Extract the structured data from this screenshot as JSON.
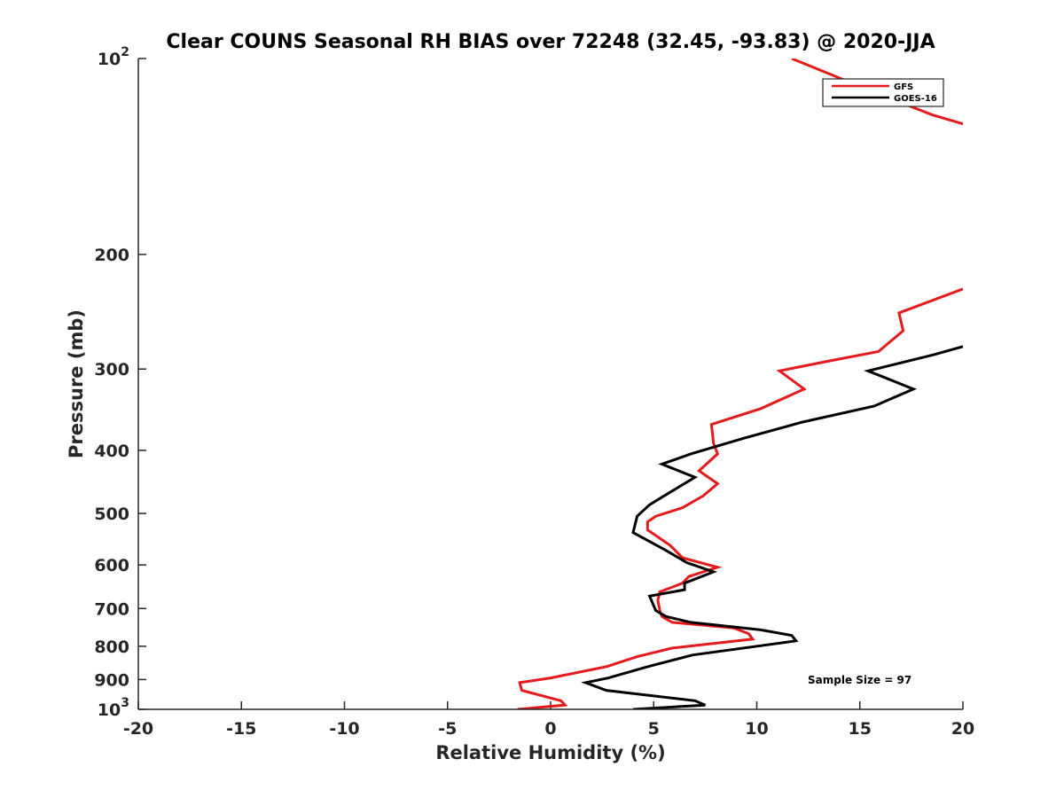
{
  "chart_data": {
    "type": "line",
    "title": "Clear COUNS Seasonal RH BIAS over 72248 (32.45, -93.83) @ 2020-JJA",
    "xlabel": "Relative Humidity (%)",
    "ylabel": "Pressure (mb)",
    "xlim": [
      -20,
      20
    ],
    "ylim": [
      100,
      1000
    ],
    "y_scale": "log",
    "y_reversed": true,
    "x_ticks": [
      "-20",
      "-15",
      "-10",
      "-5",
      "0",
      "5",
      "10",
      "15",
      "20"
    ],
    "y_tick_values": [
      100,
      200,
      300,
      400,
      500,
      600,
      700,
      800,
      900,
      1000
    ],
    "y_tick_labels": [
      "10^2",
      "200",
      "300",
      "400",
      "500",
      "600",
      "700",
      "800",
      "900",
      "10^3"
    ],
    "grid": false,
    "legend_position": "top-right",
    "annotation": "Sample Size = 97",
    "series": [
      {
        "name": "GFS",
        "color": "#e41a1c",
        "points": [
          {
            "x": -1.6,
            "y": 1000
          },
          {
            "x": 0.7,
            "y": 985
          },
          {
            "x": 0.5,
            "y": 970
          },
          {
            "x": -1.4,
            "y": 935
          },
          {
            "x": -1.5,
            "y": 910
          },
          {
            "x": 0.0,
            "y": 895
          },
          {
            "x": 2.7,
            "y": 860
          },
          {
            "x": 4.2,
            "y": 830
          },
          {
            "x": 5.9,
            "y": 805
          },
          {
            "x": 9.8,
            "y": 780
          },
          {
            "x": 9.6,
            "y": 765
          },
          {
            "x": 8.9,
            "y": 750
          },
          {
            "x": 5.9,
            "y": 735
          },
          {
            "x": 5.4,
            "y": 720
          },
          {
            "x": 5.3,
            "y": 705
          },
          {
            "x": 5.2,
            "y": 680
          },
          {
            "x": 5.3,
            "y": 660
          },
          {
            "x": 6.4,
            "y": 640
          },
          {
            "x": 6.7,
            "y": 625
          },
          {
            "x": 8.1,
            "y": 605
          },
          {
            "x": 6.4,
            "y": 585
          },
          {
            "x": 5.8,
            "y": 560
          },
          {
            "x": 4.7,
            "y": 530
          },
          {
            "x": 4.7,
            "y": 515
          },
          {
            "x": 5.1,
            "y": 505
          },
          {
            "x": 6.4,
            "y": 490
          },
          {
            "x": 7.4,
            "y": 470
          },
          {
            "x": 8.1,
            "y": 450
          },
          {
            "x": 7.2,
            "y": 430
          },
          {
            "x": 8.1,
            "y": 405
          },
          {
            "x": 7.9,
            "y": 390
          },
          {
            "x": 7.8,
            "y": 365
          },
          {
            "x": 10.2,
            "y": 345
          },
          {
            "x": 12.3,
            "y": 322
          },
          {
            "x": 11.1,
            "y": 302
          },
          {
            "x": 13.4,
            "y": 292
          },
          {
            "x": 15.9,
            "y": 282
          },
          {
            "x": 17.1,
            "y": 262
          },
          {
            "x": 16.9,
            "y": 246
          },
          {
            "x": 20.0,
            "y": 226
          }
        ],
        "points_upper": [
          {
            "x": 11.7,
            "y": 100
          },
          {
            "x": 15.8,
            "y": 113
          },
          {
            "x": 18.5,
            "y": 122
          },
          {
            "x": 20.0,
            "y": 126
          }
        ]
      },
      {
        "name": "GOES-16",
        "color": "#000000",
        "points": [
          {
            "x": 4.0,
            "y": 1000
          },
          {
            "x": 7.5,
            "y": 985
          },
          {
            "x": 7.0,
            "y": 970
          },
          {
            "x": 2.7,
            "y": 935
          },
          {
            "x": 1.7,
            "y": 910
          },
          {
            "x": 2.8,
            "y": 895
          },
          {
            "x": 4.7,
            "y": 860
          },
          {
            "x": 6.9,
            "y": 825
          },
          {
            "x": 11.9,
            "y": 785
          },
          {
            "x": 11.7,
            "y": 770
          },
          {
            "x": 10.2,
            "y": 755
          },
          {
            "x": 6.8,
            "y": 735
          },
          {
            "x": 5.6,
            "y": 720
          },
          {
            "x": 5.1,
            "y": 705
          },
          {
            "x": 4.8,
            "y": 670
          },
          {
            "x": 6.5,
            "y": 655
          },
          {
            "x": 6.5,
            "y": 640
          },
          {
            "x": 7.9,
            "y": 615
          },
          {
            "x": 6.6,
            "y": 595
          },
          {
            "x": 5.6,
            "y": 570
          },
          {
            "x": 4.0,
            "y": 535
          },
          {
            "x": 4.2,
            "y": 505
          },
          {
            "x": 4.8,
            "y": 485
          },
          {
            "x": 5.5,
            "y": 470
          },
          {
            "x": 7.0,
            "y": 440
          },
          {
            "x": 5.4,
            "y": 420
          },
          {
            "x": 6.8,
            "y": 405
          },
          {
            "x": 9.4,
            "y": 383
          },
          {
            "x": 12.2,
            "y": 362
          },
          {
            "x": 15.7,
            "y": 342
          },
          {
            "x": 17.6,
            "y": 322
          },
          {
            "x": 15.4,
            "y": 302
          },
          {
            "x": 18.6,
            "y": 285
          },
          {
            "x": 20.0,
            "y": 277
          }
        ]
      }
    ]
  }
}
